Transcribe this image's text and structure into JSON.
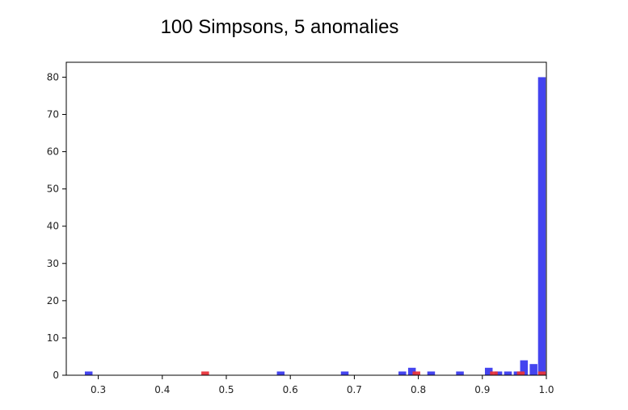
{
  "chart_data": {
    "type": "bar",
    "title": "100 Simpsons, 5 anomalies",
    "xlabel": "",
    "ylabel": "",
    "xlim": [
      0.25,
      1.0
    ],
    "ylim": [
      0,
      84
    ],
    "grid": false,
    "xticks": [
      "0.3",
      "0.4",
      "0.5",
      "0.6",
      "0.7",
      "0.8",
      "0.9",
      "1.0"
    ],
    "yticks": [
      "0",
      "10",
      "20",
      "30",
      "40",
      "50",
      "60",
      "70",
      "80"
    ],
    "series": [
      {
        "color": "#3a3aee",
        "bars": [
          {
            "x": 0.285,
            "count": 1
          },
          {
            "x": 0.585,
            "count": 1
          },
          {
            "x": 0.685,
            "count": 1
          },
          {
            "x": 0.775,
            "count": 1
          },
          {
            "x": 0.79,
            "count": 2
          },
          {
            "x": 0.82,
            "count": 1
          },
          {
            "x": 0.865,
            "count": 1
          },
          {
            "x": 0.91,
            "count": 2
          },
          {
            "x": 0.925,
            "count": 1
          },
          {
            "x": 0.94,
            "count": 1
          },
          {
            "x": 0.955,
            "count": 1
          },
          {
            "x": 0.965,
            "count": 4
          },
          {
            "x": 0.98,
            "count": 3
          },
          {
            "x": 0.993,
            "count": 80
          }
        ]
      },
      {
        "color": "#e8333a",
        "bars": [
          {
            "x": 0.467,
            "count": 1
          },
          {
            "x": 0.797,
            "count": 1
          },
          {
            "x": 0.918,
            "count": 1
          },
          {
            "x": 0.96,
            "count": 1
          },
          {
            "x": 0.993,
            "count": 1
          }
        ]
      }
    ]
  }
}
